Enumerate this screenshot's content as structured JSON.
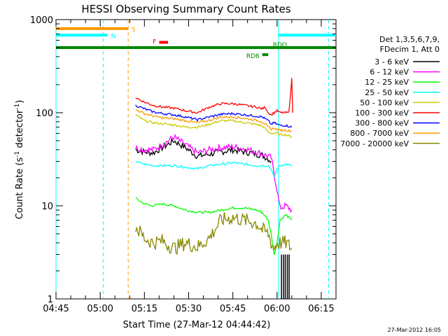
{
  "chart_data": {
    "type": "line",
    "title": "HESSI Observing Summary Count Rates",
    "xlabel": "Start Time (27-Mar-12 04:44:42)",
    "ylabel_main": "Count Rate (s",
    "ylabel_sup": "-1",
    "ylabel_mid": " detector",
    "ylabel_sup2": "-1",
    "ylabel_end": ")",
    "x_unit": "minutes after 04:45 UT",
    "xlim": [
      0,
      95
    ],
    "ylim": [
      1,
      1000
    ],
    "yscale": "log",
    "x_ticks": [
      {
        "v": 0,
        "label": "04:45"
      },
      {
        "v": 15,
        "label": "05:00"
      },
      {
        "v": 30,
        "label": "05:15"
      },
      {
        "v": 45,
        "label": "05:30"
      },
      {
        "v": 60,
        "label": "05:45"
      },
      {
        "v": 75,
        "label": "06:00"
      },
      {
        "v": 90,
        "label": "06:15"
      }
    ],
    "y_ticks": [
      {
        "v": 1,
        "label": "1"
      },
      {
        "v": 10,
        "label": "10"
      },
      {
        "v": 100,
        "label": "100"
      },
      {
        "v": 1000,
        "label": "1000"
      }
    ],
    "legend_header": [
      "Det 1,3,5,6,7,9,",
      "FDecim 1, Att 0"
    ],
    "legend_position": "right",
    "series": [
      {
        "name": "3 - 6 keV",
        "color": "#000000",
        "points": [
          [
            27,
            40
          ],
          [
            30,
            38
          ],
          [
            33,
            37
          ],
          [
            36,
            42
          ],
          [
            40,
            50
          ],
          [
            44,
            42
          ],
          [
            48,
            34
          ],
          [
            52,
            36
          ],
          [
            56,
            38
          ],
          [
            60,
            40
          ],
          [
            64,
            38
          ],
          [
            68,
            36
          ],
          [
            70,
            35
          ],
          [
            72,
            32
          ],
          [
            73,
            30
          ]
        ]
      },
      {
        "name": "6 - 12 keV",
        "color": "#ff00ff",
        "points": [
          [
            27,
            42
          ],
          [
            30,
            40
          ],
          [
            33,
            40
          ],
          [
            36,
            45
          ],
          [
            40,
            55
          ],
          [
            44,
            45
          ],
          [
            48,
            37
          ],
          [
            52,
            40
          ],
          [
            56,
            42
          ],
          [
            60,
            43
          ],
          [
            64,
            41
          ],
          [
            68,
            38
          ],
          [
            70,
            36
          ],
          [
            72,
            34
          ],
          [
            73,
            33
          ],
          [
            74,
            22
          ],
          [
            75,
            15
          ],
          [
            76,
            9.5
          ],
          [
            78,
            10
          ],
          [
            80,
            9
          ]
        ]
      },
      {
        "name": "12 - 25 keV",
        "color": "#00ff00",
        "points": [
          [
            27,
            12
          ],
          [
            30,
            10.5
          ],
          [
            33,
            10
          ],
          [
            36,
            10.5
          ],
          [
            40,
            10
          ],
          [
            44,
            9
          ],
          [
            48,
            8.5
          ],
          [
            52,
            8.5
          ],
          [
            56,
            9
          ],
          [
            60,
            9.5
          ],
          [
            64,
            9.5
          ],
          [
            68,
            9
          ],
          [
            70,
            8.5
          ],
          [
            72,
            7
          ],
          [
            73,
            5
          ],
          [
            74,
            3
          ],
          [
            75,
            4
          ],
          [
            76,
            7
          ],
          [
            78,
            8
          ],
          [
            80,
            7
          ]
        ]
      },
      {
        "name": "25 - 50 keV",
        "color": "#00ffff",
        "points": [
          [
            27,
            30
          ],
          [
            30,
            28
          ],
          [
            33,
            27
          ],
          [
            36,
            27
          ],
          [
            40,
            27
          ],
          [
            44,
            26
          ],
          [
            48,
            25
          ],
          [
            52,
            27
          ],
          [
            56,
            28
          ],
          [
            60,
            29
          ],
          [
            64,
            28
          ],
          [
            68,
            27
          ],
          [
            70,
            27
          ],
          [
            72,
            27
          ],
          [
            73,
            25
          ],
          [
            74,
            20
          ],
          [
            75,
            25
          ],
          [
            76,
            27
          ],
          [
            78,
            28
          ],
          [
            80,
            27
          ]
        ]
      },
      {
        "name": "50 - 100 keV",
        "color": "#cccc00",
        "points": [
          [
            27,
            95
          ],
          [
            30,
            82
          ],
          [
            33,
            78
          ],
          [
            36,
            76
          ],
          [
            40,
            74
          ],
          [
            44,
            70
          ],
          [
            48,
            70
          ],
          [
            52,
            75
          ],
          [
            56,
            82
          ],
          [
            60,
            82
          ],
          [
            64,
            78
          ],
          [
            68,
            75
          ],
          [
            70,
            72
          ],
          [
            72,
            62
          ],
          [
            73,
            60
          ],
          [
            74,
            60
          ],
          [
            75,
            60
          ],
          [
            76,
            58
          ],
          [
            78,
            58
          ],
          [
            80,
            55
          ]
        ]
      },
      {
        "name": "100 - 300 keV",
        "color": "#ff0000",
        "points": [
          [
            27,
            145
          ],
          [
            30,
            130
          ],
          [
            33,
            120
          ],
          [
            36,
            115
          ],
          [
            40,
            112
          ],
          [
            44,
            105
          ],
          [
            48,
            100
          ],
          [
            52,
            115
          ],
          [
            56,
            125
          ],
          [
            60,
            125
          ],
          [
            64,
            120
          ],
          [
            68,
            115
          ],
          [
            70,
            110
          ],
          [
            71,
            115
          ],
          [
            72,
            100
          ],
          [
            73,
            95
          ],
          [
            74,
            100
          ],
          [
            75,
            105
          ],
          [
            76,
            100
          ],
          [
            78,
            100
          ],
          [
            79,
            100
          ],
          [
            80,
            230
          ],
          [
            80.3,
            100
          ]
        ]
      },
      {
        "name": "300 - 800 keV",
        "color": "#0000ff",
        "points": [
          [
            27,
            120
          ],
          [
            30,
            110
          ],
          [
            33,
            102
          ],
          [
            36,
            98
          ],
          [
            40,
            95
          ],
          [
            44,
            90
          ],
          [
            48,
            84
          ],
          [
            52,
            90
          ],
          [
            56,
            96
          ],
          [
            60,
            98
          ],
          [
            64,
            95
          ],
          [
            68,
            92
          ],
          [
            70,
            90
          ],
          [
            72,
            82
          ],
          [
            73,
            75
          ],
          [
            74,
            78
          ],
          [
            75,
            75
          ],
          [
            76,
            73
          ],
          [
            78,
            73
          ],
          [
            80,
            70
          ]
        ]
      },
      {
        "name": "800 - 7000 keV",
        "color": "#ff9900",
        "points": [
          [
            27,
            108
          ],
          [
            30,
            98
          ],
          [
            33,
            92
          ],
          [
            36,
            88
          ],
          [
            40,
            86
          ],
          [
            44,
            82
          ],
          [
            48,
            78
          ],
          [
            52,
            83
          ],
          [
            56,
            90
          ],
          [
            60,
            90
          ],
          [
            64,
            87
          ],
          [
            68,
            83
          ],
          [
            70,
            80
          ],
          [
            72,
            70
          ],
          [
            73,
            67
          ],
          [
            74,
            68
          ],
          [
            75,
            66
          ],
          [
            76,
            65
          ],
          [
            78,
            65
          ],
          [
            80,
            63
          ]
        ]
      },
      {
        "name": "7000 - 20000 keV",
        "color": "#888800",
        "points": [
          [
            27,
            6
          ],
          [
            30,
            4.5
          ],
          [
            33,
            4
          ],
          [
            36,
            4.2
          ],
          [
            40,
            3.5
          ],
          [
            44,
            4
          ],
          [
            48,
            3.6
          ],
          [
            52,
            4.5
          ],
          [
            56,
            7
          ],
          [
            60,
            7.5
          ],
          [
            64,
            7
          ],
          [
            68,
            6.5
          ],
          [
            70,
            5.5
          ],
          [
            72,
            5
          ],
          [
            73,
            4
          ],
          [
            74,
            3.5
          ],
          [
            75,
            4
          ],
          [
            76,
            4
          ],
          [
            78,
            4
          ],
          [
            80,
            3.5
          ]
        ]
      }
    ],
    "black_spikes": [
      76.5,
      77.2,
      77.8,
      78.5,
      79.1
    ],
    "flags": [
      {
        "label": "S",
        "color": "#ff9900",
        "x0": 0,
        "x1": 24.5,
        "y": 800
      },
      {
        "label": "N",
        "color": "#00ffff",
        "x0": 0,
        "x1": 17.5,
        "y": 680
      },
      {
        "label": "F",
        "color": "#ff0000",
        "x0": 35,
        "x1": 38,
        "y": 570
      },
      {
        "label": "RD6",
        "color": "#008800",
        "x0": 70,
        "x1": 72,
        "y": 420
      },
      {
        "label": "RDO",
        "color": "#008800",
        "x0": 0,
        "x1": 95,
        "y": 500
      },
      {
        "label": "",
        "color": "#00ffff",
        "x0": 75.5,
        "x1": 95,
        "y": 680
      }
    ],
    "vlines": [
      {
        "x": 0,
        "color": "#00ffff",
        "dash": false
      },
      {
        "x": 16,
        "color": "#00ffff",
        "dash": true
      },
      {
        "x": 24.5,
        "color": "#ff9900",
        "dash": true
      },
      {
        "x": 75.5,
        "color": "#00ffff",
        "dash": false
      },
      {
        "x": 92.5,
        "color": "#00ffff",
        "dash": true
      }
    ],
    "timestamp": "27-Mar-2012 16:05"
  }
}
